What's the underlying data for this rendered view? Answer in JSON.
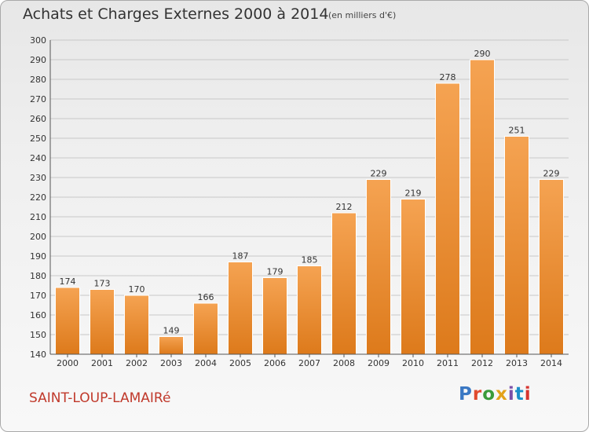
{
  "header": {
    "title": "Achats et Charges Externes 2000 à 2014",
    "unit": "(en milliers d'€)"
  },
  "footer": {
    "commune": "SAINT-LOUP-LAMAIRé",
    "logo": "Proxiti"
  },
  "colors": {
    "bar_light": "#f5a352",
    "bar_dark": "#dd7a1b",
    "grid": "#c8c8c8",
    "commune_text": "#c0392b"
  },
  "chart_data": {
    "type": "bar",
    "categories": [
      "2000",
      "2001",
      "2002",
      "2003",
      "2004",
      "2005",
      "2006",
      "2007",
      "2008",
      "2009",
      "2010",
      "2011",
      "2012",
      "2013",
      "2014"
    ],
    "values": [
      174,
      173,
      170,
      149,
      166,
      187,
      179,
      185,
      212,
      229,
      219,
      278,
      290,
      251,
      229
    ],
    "ylim": [
      140,
      300
    ],
    "yticks": [
      140,
      150,
      160,
      170,
      180,
      190,
      200,
      210,
      220,
      230,
      240,
      250,
      260,
      270,
      280,
      290,
      300
    ],
    "grid": true
  }
}
